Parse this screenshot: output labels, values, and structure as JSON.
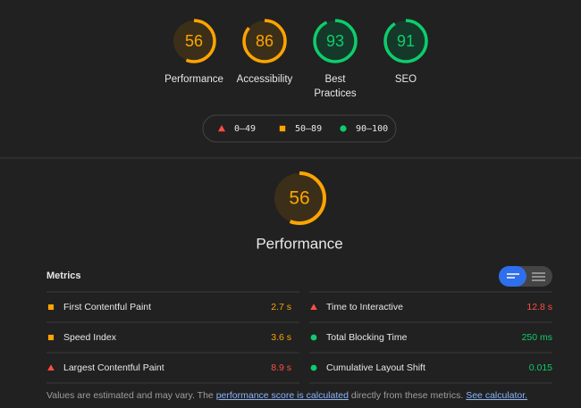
{
  "gauges": [
    {
      "label": "Performance",
      "score": 56,
      "color": "#ffa400"
    },
    {
      "label": "Accessibility",
      "score": 86,
      "color": "#ffa400"
    },
    {
      "label": "Best Practices",
      "score": 93,
      "color": "#0cce6b"
    },
    {
      "label": "SEO",
      "score": 91,
      "color": "#0cce6b"
    }
  ],
  "legend": [
    {
      "label": "0–49",
      "color": "#ff4e42"
    },
    {
      "label": "50–89",
      "color": "#ffa400"
    },
    {
      "label": "90–100",
      "color": "#0cce6b"
    }
  ],
  "main": {
    "score": 56,
    "title": "Performance",
    "color": "#ffa400"
  },
  "metrics": {
    "heading": "Metrics",
    "items": [
      {
        "name": "First Contentful Paint",
        "value": "2.7 s",
        "color": "#ffa400"
      },
      {
        "name": "Time to Interactive",
        "value": "12.8 s",
        "color": "#ff4e42"
      },
      {
        "name": "Speed Index",
        "value": "3.6 s",
        "color": "#ffa400"
      },
      {
        "name": "Total Blocking Time",
        "value": "250 ms",
        "color": "#0cce6b"
      },
      {
        "name": "Largest Contentful Paint",
        "value": "8.9 s",
        "color": "#ff4e42"
      },
      {
        "name": "Cumulative Layout Shift",
        "value": "0.015",
        "color": "#0cce6b"
      }
    ]
  },
  "footer": {
    "text1": "Values are estimated and may vary. The ",
    "link1": "performance score is calculated",
    "text2": " directly from these metrics. ",
    "link2": "See calculator."
  }
}
